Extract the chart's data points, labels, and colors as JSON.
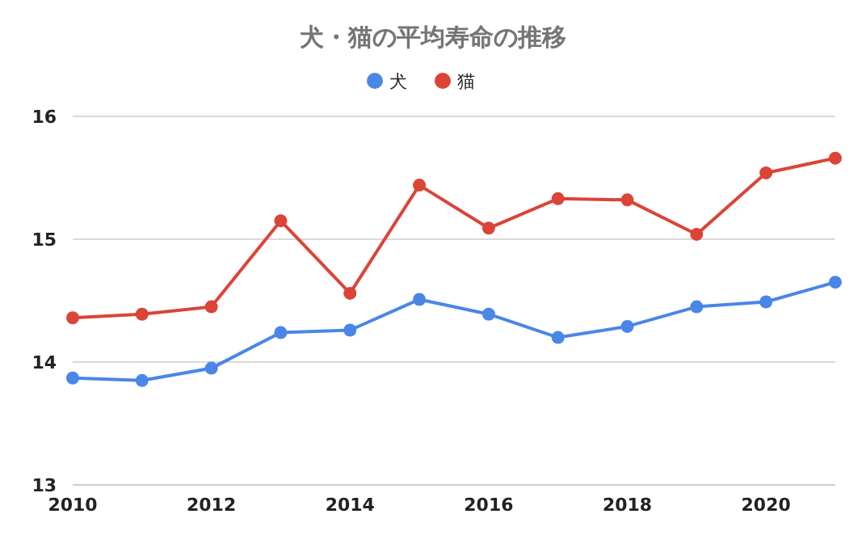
{
  "chart_data": {
    "type": "line",
    "title": "犬・猫の平均寿命の推移",
    "x": [
      2010,
      2011,
      2012,
      2013,
      2014,
      2015,
      2016,
      2017,
      2018,
      2019,
      2020,
      2021
    ],
    "series": [
      {
        "name": "犬",
        "color": "#4a86e8",
        "values": [
          13.87,
          13.85,
          13.95,
          14.24,
          14.26,
          14.51,
          14.39,
          14.2,
          14.29,
          14.45,
          14.49,
          14.65
        ]
      },
      {
        "name": "猫",
        "color": "#db4437",
        "values": [
          14.36,
          14.39,
          14.45,
          15.15,
          14.56,
          15.44,
          15.09,
          15.33,
          15.32,
          15.04,
          15.54,
          15.66
        ]
      }
    ],
    "xlim": [
      2010,
      2021
    ],
    "xticks": [
      2010,
      2012,
      2014,
      2016,
      2018,
      2020
    ],
    "ylim": [
      13,
      16
    ],
    "yticks": [
      13,
      14,
      15,
      16
    ],
    "grid": "y",
    "legend": "top",
    "marker": "circle",
    "line_style": "solid"
  }
}
